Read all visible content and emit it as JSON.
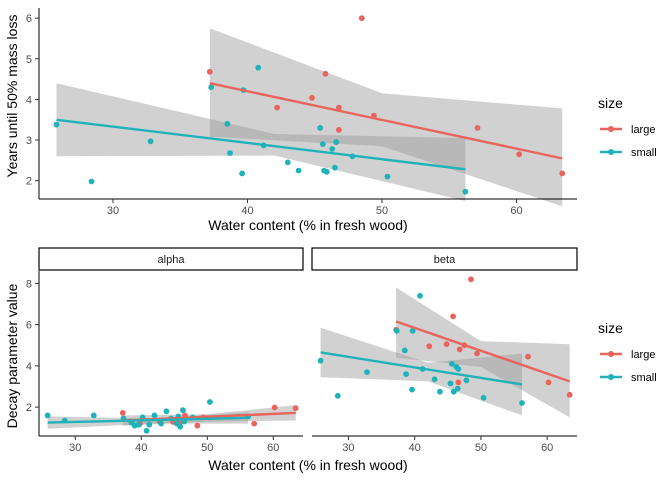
{
  "colors": {
    "large": "#e8645d",
    "small": "#1fb2b8",
    "band": "#c8c8c8",
    "axis": "#333333"
  },
  "chart_data": [
    {
      "type": "scatter",
      "title": "",
      "xlabel": "Water content (% in fresh wood)",
      "ylabel": "Years until 50% mass loss",
      "xlim": [
        24.5,
        64.5
      ],
      "ylim": [
        1.55,
        6.25
      ],
      "xticks": [
        30,
        40,
        50,
        60
      ],
      "yticks": [
        2,
        3,
        4,
        5,
        6
      ],
      "grid": false,
      "legend": {
        "title": "size",
        "position": "right",
        "entries": [
          "large",
          "small"
        ]
      },
      "series": [
        {
          "name": "large",
          "points": [
            [
              37.2,
              4.68
            ],
            [
              42.2,
              3.8
            ],
            [
              44.8,
              4.04
            ],
            [
              45.8,
              4.63
            ],
            [
              46.8,
              3.8
            ],
            [
              46.6,
              2.95
            ],
            [
              46.8,
              3.25
            ],
            [
              48.5,
              6.0
            ],
            [
              49.4,
              3.6
            ],
            [
              57.1,
              3.3
            ],
            [
              60.2,
              2.65
            ],
            [
              63.4,
              2.18
            ]
          ],
          "fit": {
            "x": [
              37.2,
              63.4
            ],
            "y": [
              4.4,
              2.55
            ]
          },
          "band": {
            "x": [
              37.2,
              50.0,
              63.4
            ],
            "upper": [
              5.75,
              4.15,
              3.78
            ],
            "lower": [
              3.08,
              2.85,
              1.37
            ]
          }
        },
        {
          "name": "small",
          "points": [
            [
              25.8,
              3.38
            ],
            [
              28.4,
              1.98
            ],
            [
              32.8,
              2.97
            ],
            [
              37.3,
              4.3
            ],
            [
              38.5,
              3.4
            ],
            [
              38.7,
              2.68
            ],
            [
              39.6,
              2.18
            ],
            [
              39.7,
              4.23
            ],
            [
              40.8,
              4.78
            ],
            [
              41.2,
              2.87
            ],
            [
              43.0,
              2.45
            ],
            [
              43.8,
              2.25
            ],
            [
              45.4,
              3.3
            ],
            [
              45.6,
              2.9
            ],
            [
              45.7,
              2.25
            ],
            [
              45.9,
              2.22
            ],
            [
              46.3,
              2.78
            ],
            [
              46.5,
              2.32
            ],
            [
              46.6,
              2.95
            ],
            [
              47.8,
              2.6
            ],
            [
              50.4,
              2.1
            ],
            [
              56.2,
              1.73
            ]
          ],
          "fit": {
            "x": [
              25.8,
              56.2
            ],
            "y": [
              3.5,
              2.28
            ]
          },
          "band": {
            "x": [
              25.8,
              42.0,
              56.2
            ],
            "upper": [
              4.4,
              3.15,
              3.05
            ],
            "lower": [
              2.6,
              2.62,
              1.5
            ]
          }
        }
      ]
    },
    {
      "type": "scatter",
      "title": "",
      "facets": [
        "alpha",
        "beta"
      ],
      "xlabel": "Water content (% in fresh wood)",
      "ylabel": "Decay parameter value",
      "xlim": [
        24.5,
        64.5
      ],
      "ylim": [
        0.6,
        8.6
      ],
      "xticks": [
        30,
        40,
        50,
        60
      ],
      "yticks": [
        2,
        4,
        6,
        8
      ],
      "grid": false,
      "legend": {
        "title": "size",
        "position": "right",
        "entries": [
          "large",
          "small"
        ]
      },
      "panels": [
        {
          "facet": "alpha",
          "series": [
            {
              "name": "large",
              "points": [
                [
                  37.2,
                  1.72
                ],
                [
                  39.8,
                  1.2
                ],
                [
                  42.8,
                  1.3
                ],
                [
                  44.8,
                  1.28
                ],
                [
                  45.8,
                  1.25
                ],
                [
                  46.6,
                  1.6
                ],
                [
                  48.5,
                  1.1
                ],
                [
                  49.4,
                  1.5
                ],
                [
                  57.1,
                  1.2
                ],
                [
                  60.2,
                  1.98
                ],
                [
                  63.4,
                  1.95
                ]
              ],
              "fit": {
                "x": [
                  37.2,
                  63.4
                ],
                "y": [
                  1.35,
                  1.72
                ]
              },
              "band": {
                "x": [
                  37.2,
                  50.0,
                  63.4
                ],
                "upper": [
                  1.6,
                  1.65,
                  2.1
                ],
                "lower": [
                  1.1,
                  1.3,
                  1.35
                ]
              }
            },
            {
              "name": "small",
              "points": [
                [
                  25.8,
                  1.6
                ],
                [
                  28.4,
                  1.35
                ],
                [
                  32.8,
                  1.6
                ],
                [
                  37.3,
                  1.45
                ],
                [
                  38.5,
                  1.25
                ],
                [
                  39.0,
                  1.1
                ],
                [
                  39.6,
                  1.15
                ],
                [
                  40.2,
                  1.5
                ],
                [
                  40.8,
                  0.85
                ],
                [
                  41.2,
                  1.15
                ],
                [
                  42.0,
                  1.6
                ],
                [
                  43.0,
                  1.2
                ],
                [
                  43.8,
                  1.8
                ],
                [
                  44.5,
                  1.45
                ],
                [
                  45.4,
                  1.2
                ],
                [
                  45.6,
                  1.55
                ],
                [
                  45.9,
                  1.05
                ],
                [
                  46.3,
                  1.85
                ],
                [
                  46.5,
                  1.3
                ],
                [
                  47.8,
                  1.5
                ],
                [
                  50.4,
                  2.25
                ],
                [
                  56.2,
                  1.55
                ]
              ],
              "fit": {
                "x": [
                  25.8,
                  56.2
                ],
                "y": [
                  1.25,
                  1.48
                ]
              },
              "band": {
                "x": [
                  25.8,
                  42.0,
                  56.2
                ],
                "upper": [
                  1.55,
                  1.45,
                  1.75
                ],
                "lower": [
                  0.95,
                  1.2,
                  1.2
                ]
              }
            }
          ]
        },
        {
          "facet": "beta",
          "series": [
            {
              "name": "large",
              "points": [
                [
                  37.2,
                  5.75
                ],
                [
                  42.2,
                  4.95
                ],
                [
                  44.8,
                  5.05
                ],
                [
                  45.8,
                  6.4
                ],
                [
                  46.6,
                  3.2
                ],
                [
                  46.8,
                  4.8
                ],
                [
                  47.5,
                  5.0
                ],
                [
                  48.5,
                  8.2
                ],
                [
                  49.4,
                  4.6
                ],
                [
                  57.1,
                  4.45
                ],
                [
                  60.2,
                  3.2
                ],
                [
                  63.4,
                  2.6
                ]
              ],
              "fit": {
                "x": [
                  37.2,
                  63.4
                ],
                "y": [
                  6.15,
                  3.25
                ]
              },
              "band": {
                "x": [
                  37.2,
                  50.0,
                  63.4
                ],
                "upper": [
                  7.8,
                  5.2,
                  5.05
                ],
                "lower": [
                  4.4,
                  3.95,
                  1.5
                ]
              }
            },
            {
              "name": "small",
              "points": [
                [
                  25.8,
                  4.25
                ],
                [
                  28.4,
                  2.55
                ],
                [
                  32.8,
                  3.7
                ],
                [
                  37.3,
                  5.7
                ],
                [
                  38.5,
                  4.75
                ],
                [
                  38.7,
                  3.6
                ],
                [
                  39.6,
                  2.85
                ],
                [
                  39.7,
                  5.7
                ],
                [
                  40.8,
                  7.4
                ],
                [
                  41.2,
                  3.85
                ],
                [
                  43.0,
                  3.35
                ],
                [
                  43.8,
                  2.75
                ],
                [
                  45.4,
                  3.15
                ],
                [
                  45.6,
                  4.1
                ],
                [
                  45.9,
                  2.75
                ],
                [
                  46.3,
                  3.95
                ],
                [
                  46.5,
                  2.9
                ],
                [
                  46.6,
                  3.85
                ],
                [
                  47.8,
                  3.3
                ],
                [
                  50.4,
                  2.45
                ],
                [
                  56.2,
                  2.2
                ]
              ],
              "fit": {
                "x": [
                  25.8,
                  56.2
                ],
                "y": [
                  4.65,
                  3.1
                ]
              },
              "band": {
                "x": [
                  25.8,
                  42.0,
                  56.2
                ],
                "upper": [
                  5.85,
                  4.15,
                  4.6
                ],
                "lower": [
                  3.45,
                  3.25,
                  1.6
                ]
              }
            }
          ]
        }
      ]
    }
  ]
}
